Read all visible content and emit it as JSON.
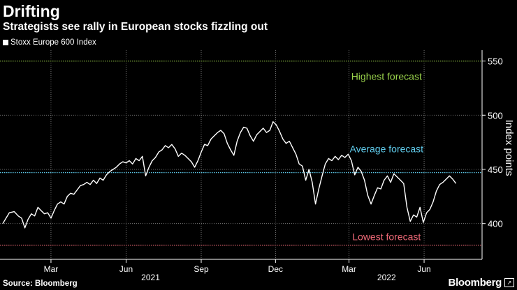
{
  "title": "Drifting",
  "subtitle": "Strategists see rally in European stocks fizzling out",
  "source": "Source: Bloomberg",
  "brand": "Bloomberg",
  "brand_badge": "↗",
  "colors": {
    "background": "#000000",
    "series": "#ffffff",
    "highest": "#9bd44c",
    "average": "#5ec8e8",
    "lowest": "#f06a78",
    "grid": "#8a8a8a"
  },
  "chart_data": {
    "type": "line",
    "title": "Drifting",
    "subtitle": "Strategists see rally in European stocks fizzling out",
    "ylabel": "Index points",
    "xlabel": "",
    "ylim": [
      367,
      560
    ],
    "yticks": [
      400,
      450,
      500,
      550
    ],
    "grid": true,
    "legend": "top-left",
    "x_range_days": [
      0,
      575
    ],
    "x_ticks": [
      {
        "label": "Mar",
        "day": 59
      },
      {
        "label": "Jun",
        "day": 151
      },
      {
        "label": "Sep",
        "day": 243
      },
      {
        "label": "Dec",
        "day": 334
      },
      {
        "label": "Mar",
        "day": 424
      },
      {
        "label": "Jun",
        "day": 516
      }
    ],
    "year_labels": [
      {
        "label": "2021",
        "day": 181
      },
      {
        "label": "2022",
        "day": 470
      }
    ],
    "reference_lines": [
      {
        "name": "Highest forecast",
        "value": 550,
        "color": "#9bd44c",
        "label_day": 470,
        "label_value": 536
      },
      {
        "name": "Average forecast",
        "value": 447,
        "color": "#5ec8e8",
        "label_day": 470,
        "label_value": 469
      },
      {
        "name": "Lowest forecast",
        "value": 380,
        "color": "#f06a78",
        "label_day": 470,
        "label_value": 388
      }
    ],
    "series": [
      {
        "name": "Stoxx Europe 600 Index",
        "points": [
          [
            0,
            400
          ],
          [
            4,
            405
          ],
          [
            8,
            410
          ],
          [
            14,
            411
          ],
          [
            19,
            407
          ],
          [
            23,
            405
          ],
          [
            27,
            396
          ],
          [
            31,
            404
          ],
          [
            35,
            409
          ],
          [
            39,
            407
          ],
          [
            43,
            415
          ],
          [
            47,
            412
          ],
          [
            51,
            409
          ],
          [
            55,
            410
          ],
          [
            59,
            405
          ],
          [
            63,
            412
          ],
          [
            67,
            418
          ],
          [
            71,
            420
          ],
          [
            75,
            418
          ],
          [
            79,
            425
          ],
          [
            83,
            428
          ],
          [
            87,
            427
          ],
          [
            91,
            431
          ],
          [
            95,
            435
          ],
          [
            99,
            436
          ],
          [
            103,
            438
          ],
          [
            107,
            436
          ],
          [
            111,
            440
          ],
          [
            115,
            437
          ],
          [
            119,
            442
          ],
          [
            123,
            440
          ],
          [
            127,
            445
          ],
          [
            131,
            448
          ],
          [
            135,
            450
          ],
          [
            139,
            452
          ],
          [
            143,
            455
          ],
          [
            147,
            457
          ],
          [
            151,
            456
          ],
          [
            155,
            458
          ],
          [
            159,
            455
          ],
          [
            163,
            460
          ],
          [
            167,
            458
          ],
          [
            171,
            462
          ],
          [
            175,
            444
          ],
          [
            179,
            452
          ],
          [
            183,
            458
          ],
          [
            187,
            461
          ],
          [
            191,
            466
          ],
          [
            195,
            468
          ],
          [
            199,
            472
          ],
          [
            203,
            470
          ],
          [
            207,
            473
          ],
          [
            211,
            469
          ],
          [
            215,
            462
          ],
          [
            219,
            465
          ],
          [
            223,
            463
          ],
          [
            227,
            460
          ],
          [
            231,
            457
          ],
          [
            235,
            452
          ],
          [
            239,
            458
          ],
          [
            243,
            466
          ],
          [
            247,
            473
          ],
          [
            251,
            472
          ],
          [
            255,
            478
          ],
          [
            259,
            481
          ],
          [
            263,
            484
          ],
          [
            267,
            486
          ],
          [
            271,
            483
          ],
          [
            275,
            474
          ],
          [
            279,
            468
          ],
          [
            283,
            463
          ],
          [
            287,
            476
          ],
          [
            291,
            484
          ],
          [
            295,
            489
          ],
          [
            299,
            488
          ],
          [
            303,
            481
          ],
          [
            307,
            476
          ],
          [
            311,
            482
          ],
          [
            315,
            485
          ],
          [
            319,
            488
          ],
          [
            323,
            484
          ],
          [
            327,
            486
          ],
          [
            331,
            494
          ],
          [
            335,
            491
          ],
          [
            339,
            485
          ],
          [
            343,
            478
          ],
          [
            347,
            474
          ],
          [
            351,
            476
          ],
          [
            355,
            470
          ],
          [
            359,
            464
          ],
          [
            363,
            455
          ],
          [
            367,
            453
          ],
          [
            371,
            440
          ],
          [
            375,
            450
          ],
          [
            379,
            438
          ],
          [
            383,
            418
          ],
          [
            387,
            432
          ],
          [
            391,
            444
          ],
          [
            395,
            455
          ],
          [
            399,
            460
          ],
          [
            403,
            458
          ],
          [
            407,
            462
          ],
          [
            411,
            459
          ],
          [
            415,
            463
          ],
          [
            419,
            461
          ],
          [
            423,
            464
          ],
          [
            427,
            458
          ],
          [
            431,
            445
          ],
          [
            435,
            452
          ],
          [
            439,
            448
          ],
          [
            443,
            440
          ],
          [
            447,
            426
          ],
          [
            451,
            418
          ],
          [
            455,
            426
          ],
          [
            459,
            433
          ],
          [
            463,
            432
          ],
          [
            467,
            440
          ],
          [
            471,
            444
          ],
          [
            475,
            438
          ],
          [
            479,
            446
          ],
          [
            483,
            443
          ],
          [
            487,
            440
          ],
          [
            491,
            437
          ],
          [
            495,
            415
          ],
          [
            499,
            402
          ],
          [
            503,
            408
          ],
          [
            507,
            406
          ],
          [
            511,
            415
          ],
          [
            515,
            401
          ],
          [
            519,
            410
          ],
          [
            523,
            413
          ],
          [
            527,
            420
          ],
          [
            531,
            430
          ],
          [
            535,
            436
          ],
          [
            539,
            438
          ],
          [
            543,
            441
          ],
          [
            547,
            444
          ],
          [
            551,
            441
          ],
          [
            555,
            437
          ]
        ]
      }
    ]
  }
}
